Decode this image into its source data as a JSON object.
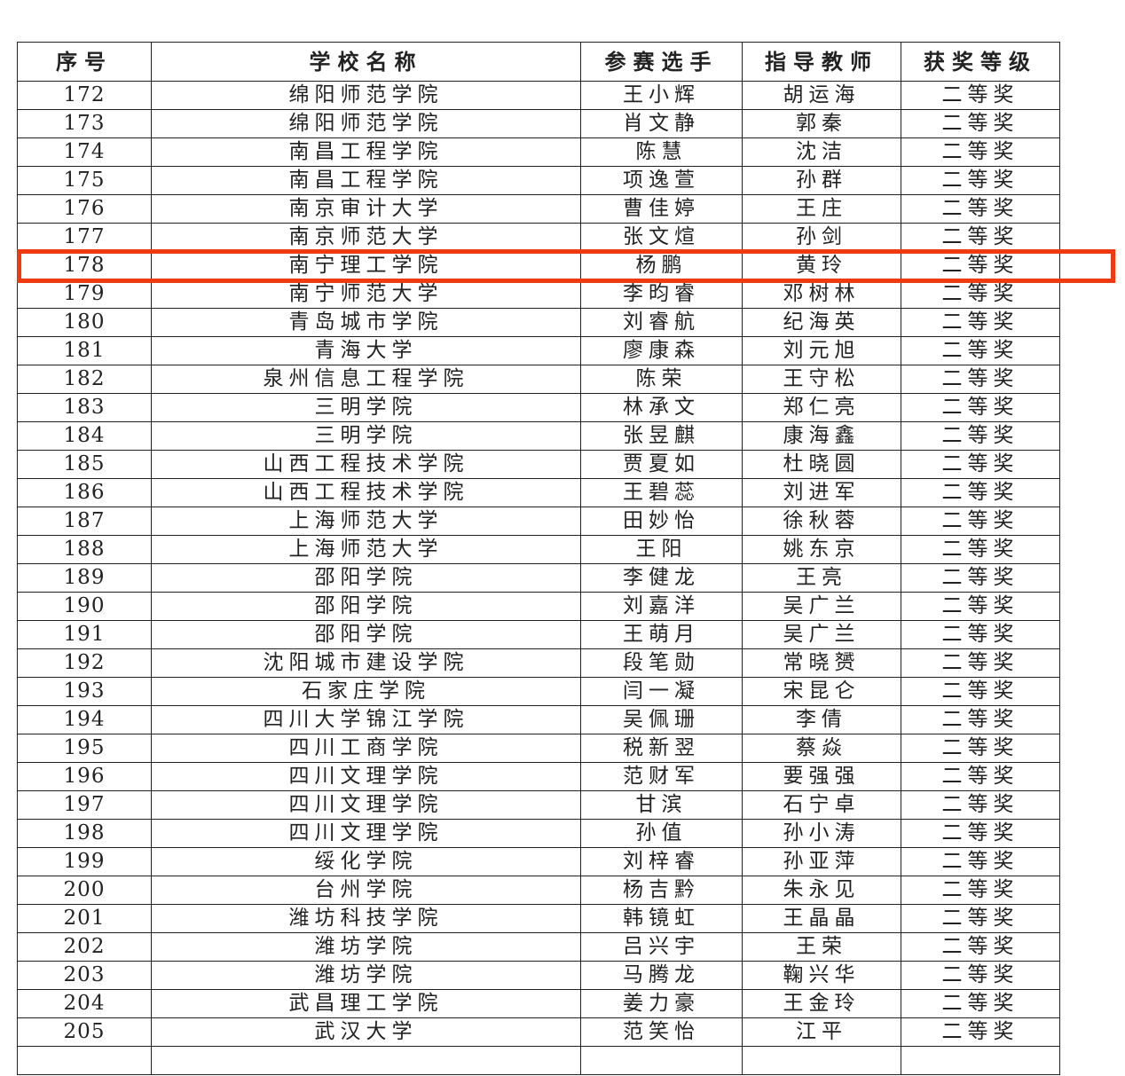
{
  "headers": [
    "序号",
    "学校名称",
    "参赛选手",
    "指导教师",
    "获奖等级"
  ],
  "rows": [
    [
      "172",
      "绵阳师范学院",
      "王小辉",
      "胡运海",
      "二等奖"
    ],
    [
      "173",
      "绵阳师范学院",
      "肖文静",
      "郭秦",
      "二等奖"
    ],
    [
      "174",
      "南昌工程学院",
      "陈慧",
      "沈洁",
      "二等奖"
    ],
    [
      "175",
      "南昌工程学院",
      "项逸萱",
      "孙群",
      "二等奖"
    ],
    [
      "176",
      "南京审计大学",
      "曹佳婷",
      "王庄",
      "二等奖"
    ],
    [
      "177",
      "南京师范大学",
      "张文煊",
      "孙剑",
      "二等奖"
    ],
    [
      "178",
      "南宁理工学院",
      "杨鹏",
      "黄玲",
      "二等奖"
    ],
    [
      "179",
      "南宁师范大学",
      "李昀睿",
      "邓树林",
      "二等奖"
    ],
    [
      "180",
      "青岛城市学院",
      "刘睿航",
      "纪海英",
      "二等奖"
    ],
    [
      "181",
      "青海大学",
      "廖康森",
      "刘元旭",
      "二等奖"
    ],
    [
      "182",
      "泉州信息工程学院",
      "陈荣",
      "王守松",
      "二等奖"
    ],
    [
      "183",
      "三明学院",
      "林承文",
      "郑仁亮",
      "二等奖"
    ],
    [
      "184",
      "三明学院",
      "张昱麒",
      "康海鑫",
      "二等奖"
    ],
    [
      "185",
      "山西工程技术学院",
      "贾夏如",
      "杜晓圆",
      "二等奖"
    ],
    [
      "186",
      "山西工程技术学院",
      "王碧蕊",
      "刘进军",
      "二等奖"
    ],
    [
      "187",
      "上海师范大学",
      "田妙怡",
      "徐秋蓉",
      "二等奖"
    ],
    [
      "188",
      "上海师范大学",
      "王阳",
      "姚东京",
      "二等奖"
    ],
    [
      "189",
      "邵阳学院",
      "李健龙",
      "王亮",
      "二等奖"
    ],
    [
      "190",
      "邵阳学院",
      "刘嘉洋",
      "吴广兰",
      "二等奖"
    ],
    [
      "191",
      "邵阳学院",
      "王萌月",
      "吴广兰",
      "二等奖"
    ],
    [
      "192",
      "沈阳城市建设学院",
      "段笔勋",
      "常晓赟",
      "二等奖"
    ],
    [
      "193",
      "石家庄学院",
      "闫一凝",
      "宋昆仑",
      "二等奖"
    ],
    [
      "194",
      "四川大学锦江学院",
      "吴佩珊",
      "李倩",
      "二等奖"
    ],
    [
      "195",
      "四川工商学院",
      "税新翌",
      "蔡焱",
      "二等奖"
    ],
    [
      "196",
      "四川文理学院",
      "范财军",
      "要强强",
      "二等奖"
    ],
    [
      "197",
      "四川文理学院",
      "甘滨",
      "石宁卓",
      "二等奖"
    ],
    [
      "198",
      "四川文理学院",
      "孙值",
      "孙小涛",
      "二等奖"
    ],
    [
      "199",
      "绥化学院",
      "刘梓睿",
      "孙亚萍",
      "二等奖"
    ],
    [
      "200",
      "台州学院",
      "杨吉黔",
      "朱永见",
      "二等奖"
    ],
    [
      "201",
      "潍坊科技学院",
      "韩镜虹",
      "王晶晶",
      "二等奖"
    ],
    [
      "202",
      "潍坊学院",
      "吕兴宇",
      "王荣",
      "二等奖"
    ],
    [
      "203",
      "潍坊学院",
      "马腾龙",
      "鞠兴华",
      "二等奖"
    ],
    [
      "204",
      "武昌理工学院",
      "姜力豪",
      "王金玲",
      "二等奖"
    ],
    [
      "205",
      "武汉大学",
      "范笑怡",
      "江平",
      "二等奖"
    ]
  ],
  "highlight": {
    "row_index": 6,
    "color": "#f23a12"
  }
}
